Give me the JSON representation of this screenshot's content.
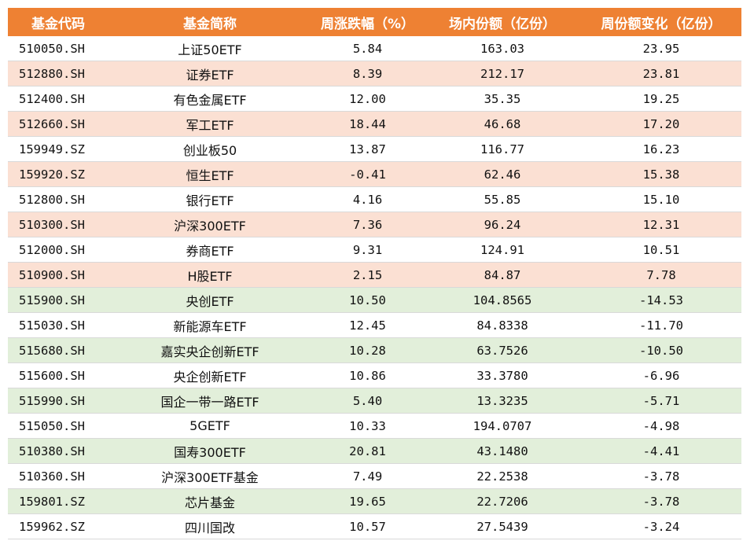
{
  "headers": [
    "基金代码",
    "基金简称",
    "周涨跌幅（%）",
    "场内份额（亿份）",
    "周份额变化（亿份）"
  ],
  "colors": {
    "header_bg": "#ee8133",
    "increase_row_bg": "#fbe0d3",
    "decrease_row_bg": "#e2efda"
  },
  "rows": [
    {
      "code": "510050.SH",
      "name": "上证50ETF",
      "change": "5.84",
      "shares": "163.03",
      "delta": "23.95",
      "tint": "white"
    },
    {
      "code": "512880.SH",
      "name": "证券ETF",
      "change": "8.39",
      "shares": "212.17",
      "delta": "23.81",
      "tint": "pink"
    },
    {
      "code": "512400.SH",
      "name": "有色金属ETF",
      "change": "12.00",
      "shares": "35.35",
      "delta": "19.25",
      "tint": "white"
    },
    {
      "code": "512660.SH",
      "name": "军工ETF",
      "change": "18.44",
      "shares": "46.68",
      "delta": "17.20",
      "tint": "pink"
    },
    {
      "code": "159949.SZ",
      "name": "创业板50",
      "change": "13.87",
      "shares": "116.77",
      "delta": "16.23",
      "tint": "white"
    },
    {
      "code": "159920.SZ",
      "name": "恒生ETF",
      "change": "-0.41",
      "shares": "62.46",
      "delta": "15.38",
      "tint": "pink"
    },
    {
      "code": "512800.SH",
      "name": "银行ETF",
      "change": "4.16",
      "shares": "55.85",
      "delta": "15.10",
      "tint": "white"
    },
    {
      "code": "510300.SH",
      "name": "沪深300ETF",
      "change": "7.36",
      "shares": "96.24",
      "delta": "12.31",
      "tint": "pink"
    },
    {
      "code": "512000.SH",
      "name": "券商ETF",
      "change": "9.31",
      "shares": "124.91",
      "delta": "10.51",
      "tint": "white"
    },
    {
      "code": "510900.SH",
      "name": "H股ETF",
      "change": "2.15",
      "shares": "84.87",
      "delta": "7.78",
      "tint": "pink"
    },
    {
      "code": "515900.SH",
      "name": "央创ETF",
      "change": "10.50",
      "shares": "104.8565",
      "delta": "-14.53",
      "tint": "green"
    },
    {
      "code": "515030.SH",
      "name": "新能源车ETF",
      "change": "12.45",
      "shares": "84.8338",
      "delta": "-11.70",
      "tint": "white"
    },
    {
      "code": "515680.SH",
      "name": "嘉实央企创新ETF",
      "change": "10.28",
      "shares": "63.7526",
      "delta": "-10.50",
      "tint": "green"
    },
    {
      "code": "515600.SH",
      "name": "央企创新ETF",
      "change": "10.86",
      "shares": "33.3780",
      "delta": "-6.96",
      "tint": "white"
    },
    {
      "code": "515990.SH",
      "name": "国企一带一路ETF",
      "change": "5.40",
      "shares": "13.3235",
      "delta": "-5.71",
      "tint": "green"
    },
    {
      "code": "515050.SH",
      "name": "5GETF",
      "change": "10.33",
      "shares": "194.0707",
      "delta": "-4.98",
      "tint": "white"
    },
    {
      "code": "510380.SH",
      "name": "国寿300ETF",
      "change": "20.81",
      "shares": "43.1480",
      "delta": "-4.41",
      "tint": "green"
    },
    {
      "code": "510360.SH",
      "name": "沪深300ETF基金",
      "change": "7.49",
      "shares": "22.2538",
      "delta": "-3.78",
      "tint": "white"
    },
    {
      "code": "159801.SZ",
      "name": "芯片基金",
      "change": "19.65",
      "shares": "22.7206",
      "delta": "-3.78",
      "tint": "green"
    },
    {
      "code": "159962.SZ",
      "name": "四川国改",
      "change": "10.57",
      "shares": "27.5439",
      "delta": "-3.24",
      "tint": "white"
    }
  ]
}
